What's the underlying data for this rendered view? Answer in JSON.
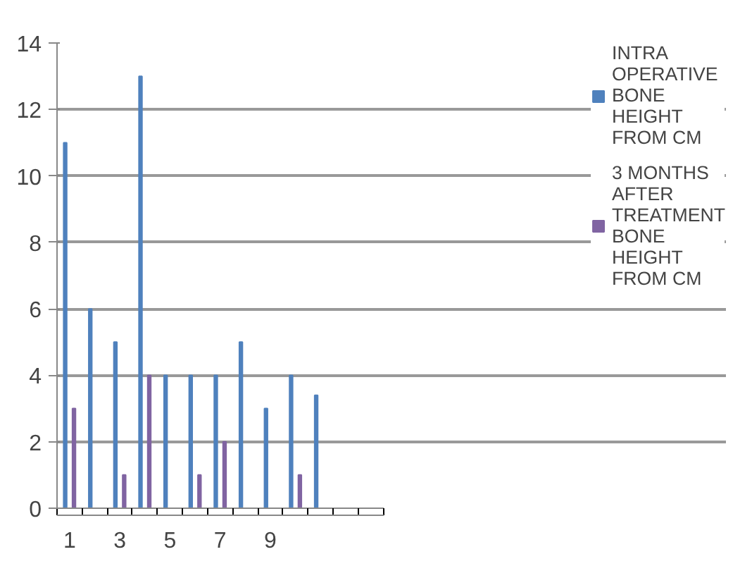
{
  "chart_data": {
    "type": "bar",
    "categories": [
      "1",
      null,
      "3",
      null,
      "5",
      null,
      "7",
      null,
      "9",
      null,
      null,
      null,
      null
    ],
    "series": [
      {
        "name": "INTRA OPERATIVE BONE HEIGHT FROM CM",
        "color": "#4f81bd",
        "values": [
          11,
          6,
          5,
          13,
          4,
          4,
          4,
          5,
          3,
          4,
          3.4,
          null,
          null
        ]
      },
      {
        "name": "3 MONTHS AFTER TREATMENT BONE HEIGHT FROM CM",
        "color": "#8064a2",
        "values": [
          3,
          0,
          1,
          4,
          0,
          1,
          2,
          0,
          0,
          1,
          0,
          null,
          null
        ]
      }
    ],
    "ylim": [
      0,
      14
    ],
    "yticks": [
      0,
      2,
      4,
      6,
      8,
      10,
      12,
      14
    ],
    "grid": "y",
    "legend": "right"
  }
}
